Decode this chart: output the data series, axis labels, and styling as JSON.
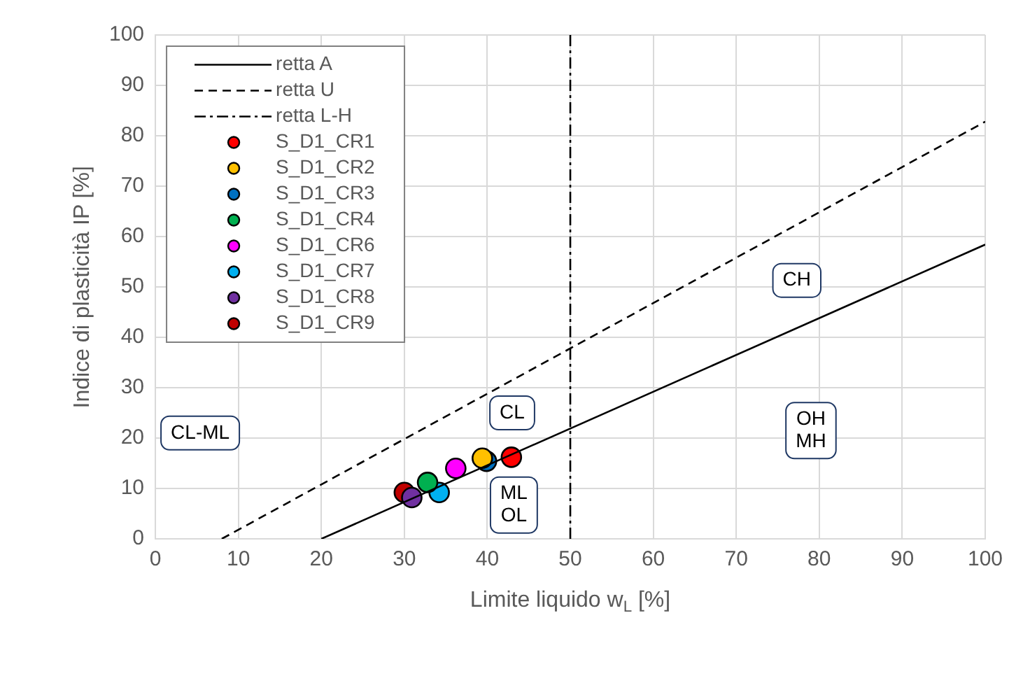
{
  "chart_data": {
    "type": "scatter",
    "xlabel": "Limite liquido w$_{L}$ [%]",
    "ylabel": "Indice di plasticità IP [%]",
    "xlim": [
      0,
      100
    ],
    "xticks": [
      0,
      10,
      20,
      30,
      40,
      50,
      60,
      70,
      80,
      90,
      100
    ],
    "ylim": [
      0,
      100
    ],
    "yticks": [
      0,
      10,
      20,
      30,
      40,
      50,
      60,
      70,
      80,
      90,
      100
    ],
    "grid": true,
    "legend": "top left",
    "marker": "circle",
    "series": [
      {
        "name": "retta A",
        "type": "line",
        "line_style": "solid",
        "marker": "none",
        "color": "#000000",
        "x": [
          20,
          100
        ],
        "values": [
          0,
          58.4
        ]
      },
      {
        "name": "retta U",
        "type": "line",
        "line_style": "dashed",
        "marker": "none",
        "color": "#000000",
        "x": [
          8,
          100
        ],
        "values": [
          0,
          82.8
        ]
      },
      {
        "name": "retta L-H",
        "type": "line",
        "line_style": "dashdot",
        "marker": "none",
        "color": "#000000",
        "x": [
          50,
          50
        ],
        "values": [
          0,
          100
        ]
      },
      {
        "name": "S_D1_CR1",
        "color": "#ff0000",
        "x": [
          42.9
        ],
        "values": [
          16.2
        ]
      },
      {
        "name": "S_D1_CR2",
        "color": "#ffc000",
        "x": [
          39.4
        ],
        "values": [
          16.0
        ]
      },
      {
        "name": "S_D1_CR3",
        "color": "#0070c0",
        "x": [
          39.9
        ],
        "values": [
          15.4
        ]
      },
      {
        "name": "S_D1_CR4",
        "color": "#00b050",
        "x": [
          32.8
        ],
        "values": [
          11.2
        ]
      },
      {
        "name": "S_D1_CR6",
        "color": "#ff00ff",
        "x": [
          36.2
        ],
        "values": [
          14.0
        ]
      },
      {
        "name": "S_D1_CR7",
        "color": "#00b0f0",
        "x": [
          34.2
        ],
        "values": [
          9.2
        ]
      },
      {
        "name": "S_D1_CR8",
        "color": "#7030a0",
        "x": [
          30.9
        ],
        "values": [
          8.2
        ]
      },
      {
        "name": "S_D1_CR9",
        "color": "#c00000",
        "x": [
          30.0
        ],
        "values": [
          9.2
        ]
      }
    ],
    "annotations": [
      {
        "text": "CH",
        "x": 77.3,
        "y": 51.3
      },
      "CL-ML",
      {
        "text": "CL",
        "x": 43,
        "y": 25
      },
      {
        "text": "ML\nOL",
        "x": 43.2,
        "y": 6.7
      },
      {
        "text": "OH\nMH",
        "x": 79,
        "y": 21.5
      }
    ]
  }
}
